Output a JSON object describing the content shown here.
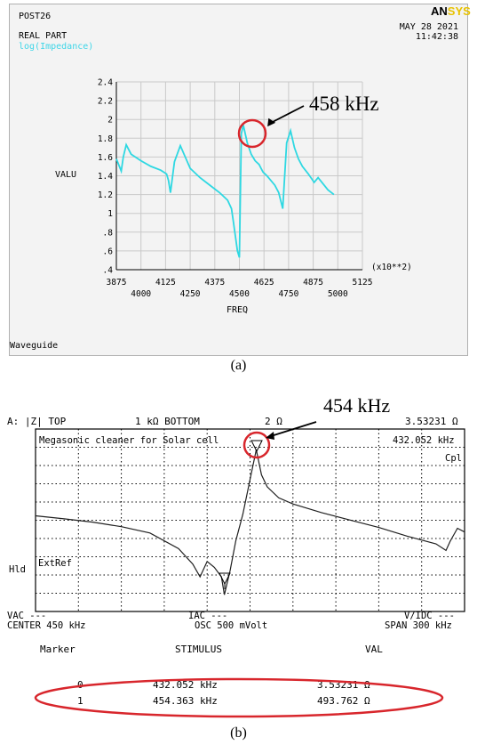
{
  "panel_a": {
    "header": {
      "line1": "POST26",
      "line2": "REAL PART",
      "line3": "log(Impedance)",
      "date": "MAY 28 2021",
      "time": "11:42:38",
      "logo_main": "AN",
      "logo_sub": "SYS"
    },
    "footer": "Waveguide",
    "annotation": "458 kHz",
    "caption": "(a)"
  },
  "panel_b": {
    "status_bar": {
      "channel": "A: |Z| TOP",
      "top_scale": "1 kΩ BOTTOM",
      "bottom_scale": "2 Ω",
      "marker_value": "3.53231 Ω"
    },
    "plot_title": "Megasonic cleaner for Solar cell",
    "marker_freq": "432.052 kHz",
    "cpl": "Cpl",
    "hld": "Hld",
    "extref": "ExtRef",
    "bottom_row1": {
      "vac": "VAC ---",
      "iac": "IAC ---",
      "vidc": "V/IDC ---"
    },
    "bottom_row2": {
      "center": "CENTER 450 kHz",
      "osc": "OSC 500 mVolt",
      "span": "SPAN 300 kHz"
    },
    "table": {
      "headers": [
        "Marker",
        "STIMULUS",
        "VAL"
      ],
      "rows": [
        [
          "0",
          "432.052 kHz",
          "3.53231 Ω"
        ],
        [
          "1",
          "454.363 kHz",
          "493.762 Ω"
        ]
      ]
    },
    "annotation": "454 kHz",
    "caption": "(b)"
  },
  "chart_data": [
    {
      "type": "line",
      "title": "",
      "xlabel": "FREQ",
      "ylabel": "VALU",
      "x_multiplier": "(x10**2)",
      "x_ticks_upper": [
        3875,
        4125,
        4375,
        4625,
        4875,
        5125
      ],
      "x_ticks_lower": [
        4000,
        4250,
        4500,
        4750,
        5000
      ],
      "y_tick_labels": [
        ".4",
        ".6",
        ".8",
        "1",
        "1.2",
        "1.4",
        "1.6",
        "1.8",
        "2",
        "2.2",
        "2.4"
      ],
      "xlim": [
        3875,
        5125
      ],
      "ylim": [
        0.4,
        2.4
      ],
      "grid": true,
      "series_color": "#2ed8e2",
      "series": [
        {
          "x": [
            3875,
            3900,
            3910,
            3925,
            3950,
            4000,
            4050,
            4100,
            4130,
            4140,
            4150,
            4170,
            4200,
            4250,
            4300,
            4350,
            4400,
            4440,
            4460,
            4470,
            4480,
            4490,
            4500,
            4510,
            4520,
            4540,
            4560,
            4580,
            4600,
            4610,
            4620,
            4640,
            4660,
            4680,
            4700,
            4720,
            4740,
            4760,
            4780,
            4800,
            4820,
            4850,
            4880,
            4900,
            4950,
            4980
          ],
          "y": [
            1.58,
            1.45,
            1.6,
            1.73,
            1.63,
            1.56,
            1.5,
            1.46,
            1.42,
            1.35,
            1.22,
            1.55,
            1.72,
            1.48,
            1.38,
            1.3,
            1.22,
            1.14,
            1.05,
            0.9,
            0.75,
            0.6,
            0.53,
            1.85,
            1.94,
            1.75,
            1.63,
            1.56,
            1.52,
            1.48,
            1.44,
            1.4,
            1.35,
            1.3,
            1.22,
            1.05,
            1.75,
            1.88,
            1.7,
            1.58,
            1.5,
            1.42,
            1.33,
            1.38,
            1.25,
            1.2
          ]
        }
      ]
    },
    {
      "type": "line",
      "title": "Megasonic cleaner for Solar cell",
      "xlabel": "",
      "ylabel": "",
      "xlim": [
        300,
        600
      ],
      "ylim": [
        2,
        1000
      ],
      "y_scale": "log",
      "grid": "dotted",
      "series_color": "#202020",
      "series": [
        {
          "x": [
            300,
            320,
            340,
            360,
            380,
            400,
            410,
            415,
            420,
            425,
            430,
            432.052,
            436,
            440,
            445,
            450,
            454.363,
            458,
            462,
            470,
            480,
            500,
            520,
            540,
            560,
            580,
            587,
            590,
            595,
            600
          ],
          "y": [
            52,
            47,
            42,
            36,
            29,
            17,
            10,
            6.5,
            11,
            9,
            6.5,
            3.53231,
            8,
            22,
            55,
            180,
            493.762,
            210,
            140,
            96,
            78,
            58,
            45,
            35,
            26,
            20,
            16,
            22,
            34,
            30
          ]
        }
      ]
    }
  ]
}
